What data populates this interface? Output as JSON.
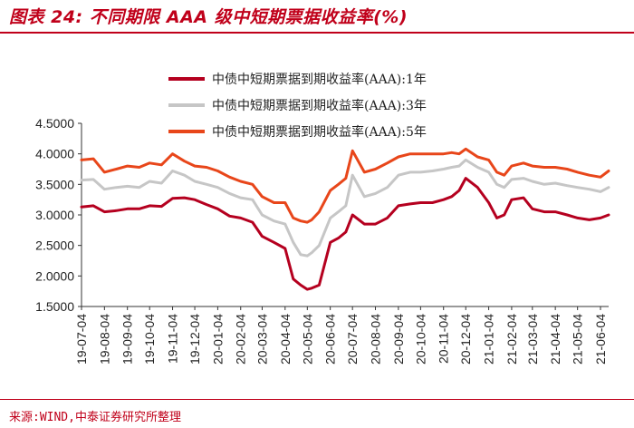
{
  "header": {
    "title": "图表 24:  不同期限 AAA 级中短期票据收益率(%)"
  },
  "footer": {
    "source": "来源:WIND,中泰证券研究所整理"
  },
  "chart_data": {
    "type": "line",
    "ylim": [
      1.5,
      4.5
    ],
    "yticks": [
      "1.5000",
      "2.0000",
      "2.5000",
      "3.0000",
      "3.5000",
      "4.0000",
      "4.5000"
    ],
    "xticks": [
      "19-07-04",
      "19-08-04",
      "19-09-04",
      "19-10-04",
      "19-11-04",
      "19-12-04",
      "20-01-04",
      "20-02-04",
      "20-03-04",
      "20-04-04",
      "20-05-04",
      "20-06-04",
      "20-07-04",
      "20-08-04",
      "20-09-04",
      "20-10-04",
      "20-11-04",
      "20-12-04",
      "21-01-04",
      "21-02-04",
      "21-03-04",
      "21-04-04",
      "21-05-04",
      "21-06-04"
    ],
    "legend_position": "top-right",
    "grid": false,
    "series": [
      {
        "name": "中债中短期票据到期收益率(AAA):1年",
        "color": "#b5001f",
        "x": [
          "19-07-04",
          "19-07-20",
          "19-08-04",
          "19-08-20",
          "19-09-04",
          "19-09-20",
          "19-10-04",
          "19-10-20",
          "19-11-04",
          "19-11-20",
          "19-12-04",
          "19-12-20",
          "20-01-04",
          "20-01-20",
          "20-02-04",
          "20-02-20",
          "20-03-04",
          "20-03-20",
          "20-04-04",
          "20-04-15",
          "20-04-25",
          "20-05-04",
          "20-05-10",
          "20-05-20",
          "20-06-04",
          "20-06-15",
          "20-06-25",
          "20-07-04",
          "20-07-20",
          "20-08-04",
          "20-08-20",
          "20-09-04",
          "20-09-20",
          "20-10-04",
          "20-10-20",
          "20-11-04",
          "20-11-15",
          "20-11-25",
          "20-12-04",
          "20-12-20",
          "21-01-04",
          "21-01-15",
          "21-01-25",
          "21-02-04",
          "21-02-20",
          "21-03-04",
          "21-03-20",
          "21-04-04",
          "21-04-20",
          "21-05-04",
          "21-05-20",
          "21-06-04",
          "21-06-15"
        ],
        "values": [
          3.13,
          3.15,
          3.05,
          3.07,
          3.1,
          3.1,
          3.15,
          3.14,
          3.27,
          3.28,
          3.25,
          3.17,
          3.1,
          2.98,
          2.95,
          2.88,
          2.65,
          2.55,
          2.45,
          1.95,
          1.85,
          1.78,
          1.8,
          1.85,
          2.55,
          2.62,
          2.72,
          3.0,
          2.85,
          2.85,
          2.95,
          3.15,
          3.18,
          3.2,
          3.2,
          3.25,
          3.3,
          3.4,
          3.6,
          3.45,
          3.2,
          2.95,
          3.0,
          3.25,
          3.28,
          3.1,
          3.05,
          3.05,
          3.0,
          2.95,
          2.92,
          2.95,
          3.0
        ]
      },
      {
        "name": "中债中短期票据到期收益率(AAA):3年",
        "color": "#c6c6c6",
        "x": [
          "19-07-04",
          "19-07-20",
          "19-08-04",
          "19-08-20",
          "19-09-04",
          "19-09-20",
          "19-10-04",
          "19-10-20",
          "19-11-04",
          "19-11-20",
          "19-12-04",
          "19-12-20",
          "20-01-04",
          "20-01-20",
          "20-02-04",
          "20-02-20",
          "20-03-04",
          "20-03-20",
          "20-04-04",
          "20-04-15",
          "20-04-25",
          "20-05-04",
          "20-05-10",
          "20-05-20",
          "20-06-04",
          "20-06-15",
          "20-06-25",
          "20-07-04",
          "20-07-20",
          "20-08-04",
          "20-08-20",
          "20-09-04",
          "20-09-20",
          "20-10-04",
          "20-10-20",
          "20-11-04",
          "20-11-15",
          "20-11-25",
          "20-12-04",
          "20-12-20",
          "21-01-04",
          "21-01-15",
          "21-01-25",
          "21-02-04",
          "21-02-20",
          "21-03-04",
          "21-03-20",
          "21-04-04",
          "21-04-20",
          "21-05-04",
          "21-05-20",
          "21-06-04",
          "21-06-15"
        ],
        "values": [
          3.57,
          3.58,
          3.42,
          3.45,
          3.47,
          3.45,
          3.55,
          3.52,
          3.72,
          3.65,
          3.55,
          3.5,
          3.45,
          3.35,
          3.28,
          3.25,
          3.0,
          2.9,
          2.85,
          2.55,
          2.35,
          2.33,
          2.38,
          2.5,
          2.95,
          3.05,
          3.15,
          3.65,
          3.3,
          3.35,
          3.45,
          3.65,
          3.7,
          3.7,
          3.72,
          3.75,
          3.78,
          3.8,
          3.9,
          3.78,
          3.7,
          3.5,
          3.45,
          3.58,
          3.6,
          3.55,
          3.5,
          3.52,
          3.48,
          3.45,
          3.42,
          3.38,
          3.45
        ]
      },
      {
        "name": "中债中短期票据到期收益率(AAA):5年",
        "color": "#e8461a",
        "x": [
          "19-07-04",
          "19-07-20",
          "19-08-04",
          "19-08-20",
          "19-09-04",
          "19-09-20",
          "19-10-04",
          "19-10-20",
          "19-11-04",
          "19-11-20",
          "19-12-04",
          "19-12-20",
          "20-01-04",
          "20-01-20",
          "20-02-04",
          "20-02-20",
          "20-03-04",
          "20-03-20",
          "20-04-04",
          "20-04-15",
          "20-04-25",
          "20-05-04",
          "20-05-10",
          "20-05-20",
          "20-06-04",
          "20-06-15",
          "20-06-25",
          "20-07-04",
          "20-07-20",
          "20-08-04",
          "20-08-20",
          "20-09-04",
          "20-09-20",
          "20-10-04",
          "20-10-20",
          "20-11-04",
          "20-11-15",
          "20-11-25",
          "20-12-04",
          "20-12-20",
          "21-01-04",
          "21-01-15",
          "21-01-25",
          "21-02-04",
          "21-02-20",
          "21-03-04",
          "21-03-20",
          "21-04-04",
          "21-04-20",
          "21-05-04",
          "21-05-20",
          "21-06-04",
          "21-06-15"
        ],
        "values": [
          3.9,
          3.92,
          3.7,
          3.75,
          3.8,
          3.78,
          3.85,
          3.82,
          4.0,
          3.88,
          3.8,
          3.78,
          3.72,
          3.62,
          3.55,
          3.5,
          3.3,
          3.2,
          3.2,
          2.95,
          2.9,
          2.88,
          2.92,
          3.05,
          3.4,
          3.5,
          3.6,
          4.05,
          3.7,
          3.75,
          3.85,
          3.95,
          4.0,
          4.0,
          4.0,
          4.0,
          4.02,
          4.0,
          4.08,
          3.95,
          3.9,
          3.7,
          3.65,
          3.8,
          3.85,
          3.8,
          3.78,
          3.78,
          3.75,
          3.7,
          3.65,
          3.62,
          3.72
        ]
      }
    ]
  }
}
